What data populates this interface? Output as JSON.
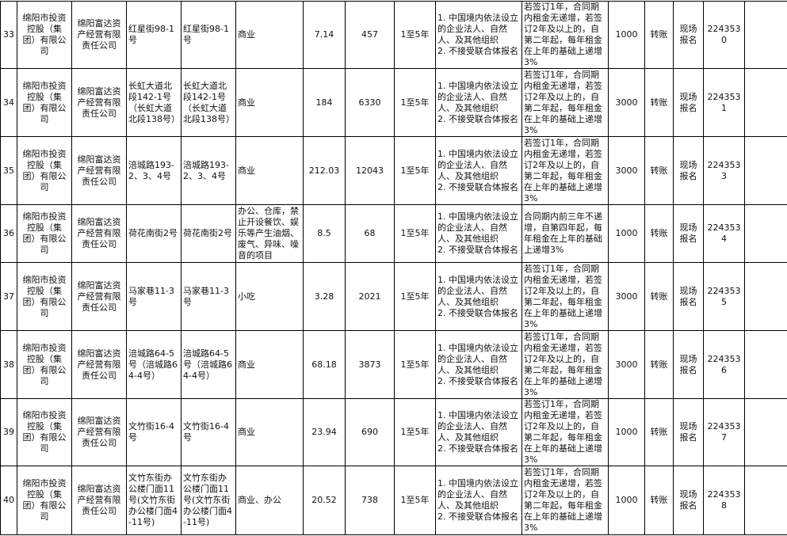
{
  "rows": [
    {
      "no": "33",
      "owner": "绵阳市投资控股（集团）有限公司",
      "manager": "绵阳富达资产经营有限责任公司",
      "address": "红星街98-1号",
      "address2": "红星街98-1号",
      "usage": "商业",
      "area": "7.14",
      "rent": "457",
      "term": "1至5年",
      "requirements": "1. 中国境内依法设立的企业法人、自然人、及其他组织\n2. 不接受联合体报名",
      "increase": "若签订1年，合同期内租金无递增，若签订2年及以上的，自第二年起，每年租金在上年的基础上递增3%",
      "deposit": "1000",
      "payment": "转账",
      "registration": "现场报名",
      "code": "2243530",
      "extra": ""
    },
    {
      "no": "34",
      "owner": "绵阳市投资控股（集团）有限公司",
      "manager": "绵阳富达资产经营有限责任公司",
      "address": "长虹大道北段142-1号（长虹大道北段138号）",
      "address2": "长虹大道北段142-1号（长虹大道北段138号）",
      "usage": "商业",
      "area": "184",
      "rent": "6330",
      "term": "1至5年",
      "requirements": "1. 中国境内依法设立的企业法人、自然人、及其他组织\n2. 不接受联合体报名",
      "increase": "若签订1年，合同期内租金无递增，若签订2年及以上的，自第二年起，每年租金在上年的基础上递增3%",
      "deposit": "3000",
      "payment": "转账",
      "registration": "现场报名",
      "code": "2243531",
      "extra": ""
    },
    {
      "no": "35",
      "owner": "绵阳市投资控股（集团）有限公司",
      "manager": "绵阳富达资产经营有限责任公司",
      "address": "涪城路193-2、3、4号",
      "address2": "涪城路193-2、3、4号",
      "usage": "商业",
      "area": "212.03",
      "rent": "12043",
      "term": "1至5年",
      "requirements": "1. 中国境内依法设立的企业法人、自然人、及其他组织\n2. 不接受联合体报名",
      "increase": "若签订1年，合同期内租金无递增，若签订2年及以上的，自第二年起，每年租金在上年的基础上递增3%",
      "deposit": "3000",
      "payment": "转账",
      "registration": "现场报名",
      "code": "2243533",
      "extra": ""
    },
    {
      "no": "36",
      "owner": "绵阳市投资控股（集团）有限公司",
      "manager": "绵阳富达资产经营有限责任公司",
      "address": "荷花南街2号",
      "address2": "荷花南街2号",
      "usage": "办公、仓库，禁止开设餐饮、娱乐等产生油烟、废气、异味、噪音的项目",
      "area": "8.5",
      "rent": "68",
      "term": "1至5年",
      "requirements": "1. 中国境内依法设立的企业法人、自然人、及其他组织\n2. 不接受联合体报名",
      "increase": "合同期内前三年不递增，自第四年起，每年租金在上年的基础上递增3%",
      "deposit": "1000",
      "payment": "转账",
      "registration": "现场报名",
      "code": "2243534",
      "extra": ""
    },
    {
      "no": "37",
      "owner": "绵阳市投资控股（集团）有限公司",
      "manager": "绵阳富达资产经营有限责任公司",
      "address": "马家巷11-3号",
      "address2": "马家巷11-3号",
      "usage": "小吃",
      "area": "3.28",
      "rent": "2021",
      "term": "1至5年",
      "requirements": "1. 中国境内依法设立的企业法人、自然人、及其他组织\n2. 不接受联合体报名",
      "increase": "若签订1年，合同期内租金无递增，若签订2年及以上的，自第二年起，每年租金在上年的基础上递增3%",
      "deposit": "3000",
      "payment": "转账",
      "registration": "现场报名",
      "code": "2243535",
      "extra": ""
    },
    {
      "no": "38",
      "owner": "绵阳市投资控股（集团）有限公司",
      "manager": "绵阳富达资产经营有限责任公司",
      "address": "涪城路64-5号（涪城路64-4号）",
      "address2": "涪城路64-5号（涪城路64-4号）",
      "usage": "商业",
      "area": "68.18",
      "rent": "3873",
      "term": "1至5年",
      "requirements": "1. 中国境内依法设立的企业法人、自然人、及其他组织\n2. 不接受联合体报名",
      "increase": "若签订1年，合同期内租金无递增，若签订2年及以上的，自第二年起，每年租金在上年的基础上递增3%",
      "deposit": "3000",
      "payment": "转账",
      "registration": "现场报名",
      "code": "2243536",
      "extra": ""
    },
    {
      "no": "39",
      "owner": "绵阳市投资控股（集团）有限公司",
      "manager": "绵阳富达资产经营有限责任公司",
      "address": "文竹街16-4号",
      "address2": "文竹街16-4号",
      "usage": "商业",
      "area": "23.94",
      "rent": "690",
      "term": "1至5年",
      "requirements": "1. 中国境内依法设立的企业法人、自然人、及其他组织\n2. 不接受联合体报名",
      "increase": "若签订1年，合同期内租金无递增，若签订2年及以上的，自第二年起，每年租金在上年的基础上递增3%",
      "deposit": "1000",
      "payment": "转账",
      "registration": "现场报名",
      "code": "2243537",
      "extra": ""
    },
    {
      "no": "40",
      "owner": "绵阳市投资控股（集团）有限公司",
      "manager": "绵阳富达资产经营有限责任公司",
      "address": "文竹东街办公楼门面11号(文竹东街办公楼门面4-11号)",
      "address2": "文竹东街办公楼门面11号(文竹东街办公楼门面4-11号)",
      "usage": "商业、办公",
      "area": "20.52",
      "rent": "738",
      "term": "1至5年",
      "requirements": "1. 中国境内依法设立的企业法人、自然人、及其他组织\n2. 不接受联合体报名",
      "increase": "若签订1年，合同期内租金无递增，若签订2年及以上的，自第二年起，每年租金在上年的基础上递增3%",
      "deposit": "1000",
      "payment": "转账",
      "registration": "现场报名",
      "code": "2243538",
      "extra": ""
    }
  ]
}
